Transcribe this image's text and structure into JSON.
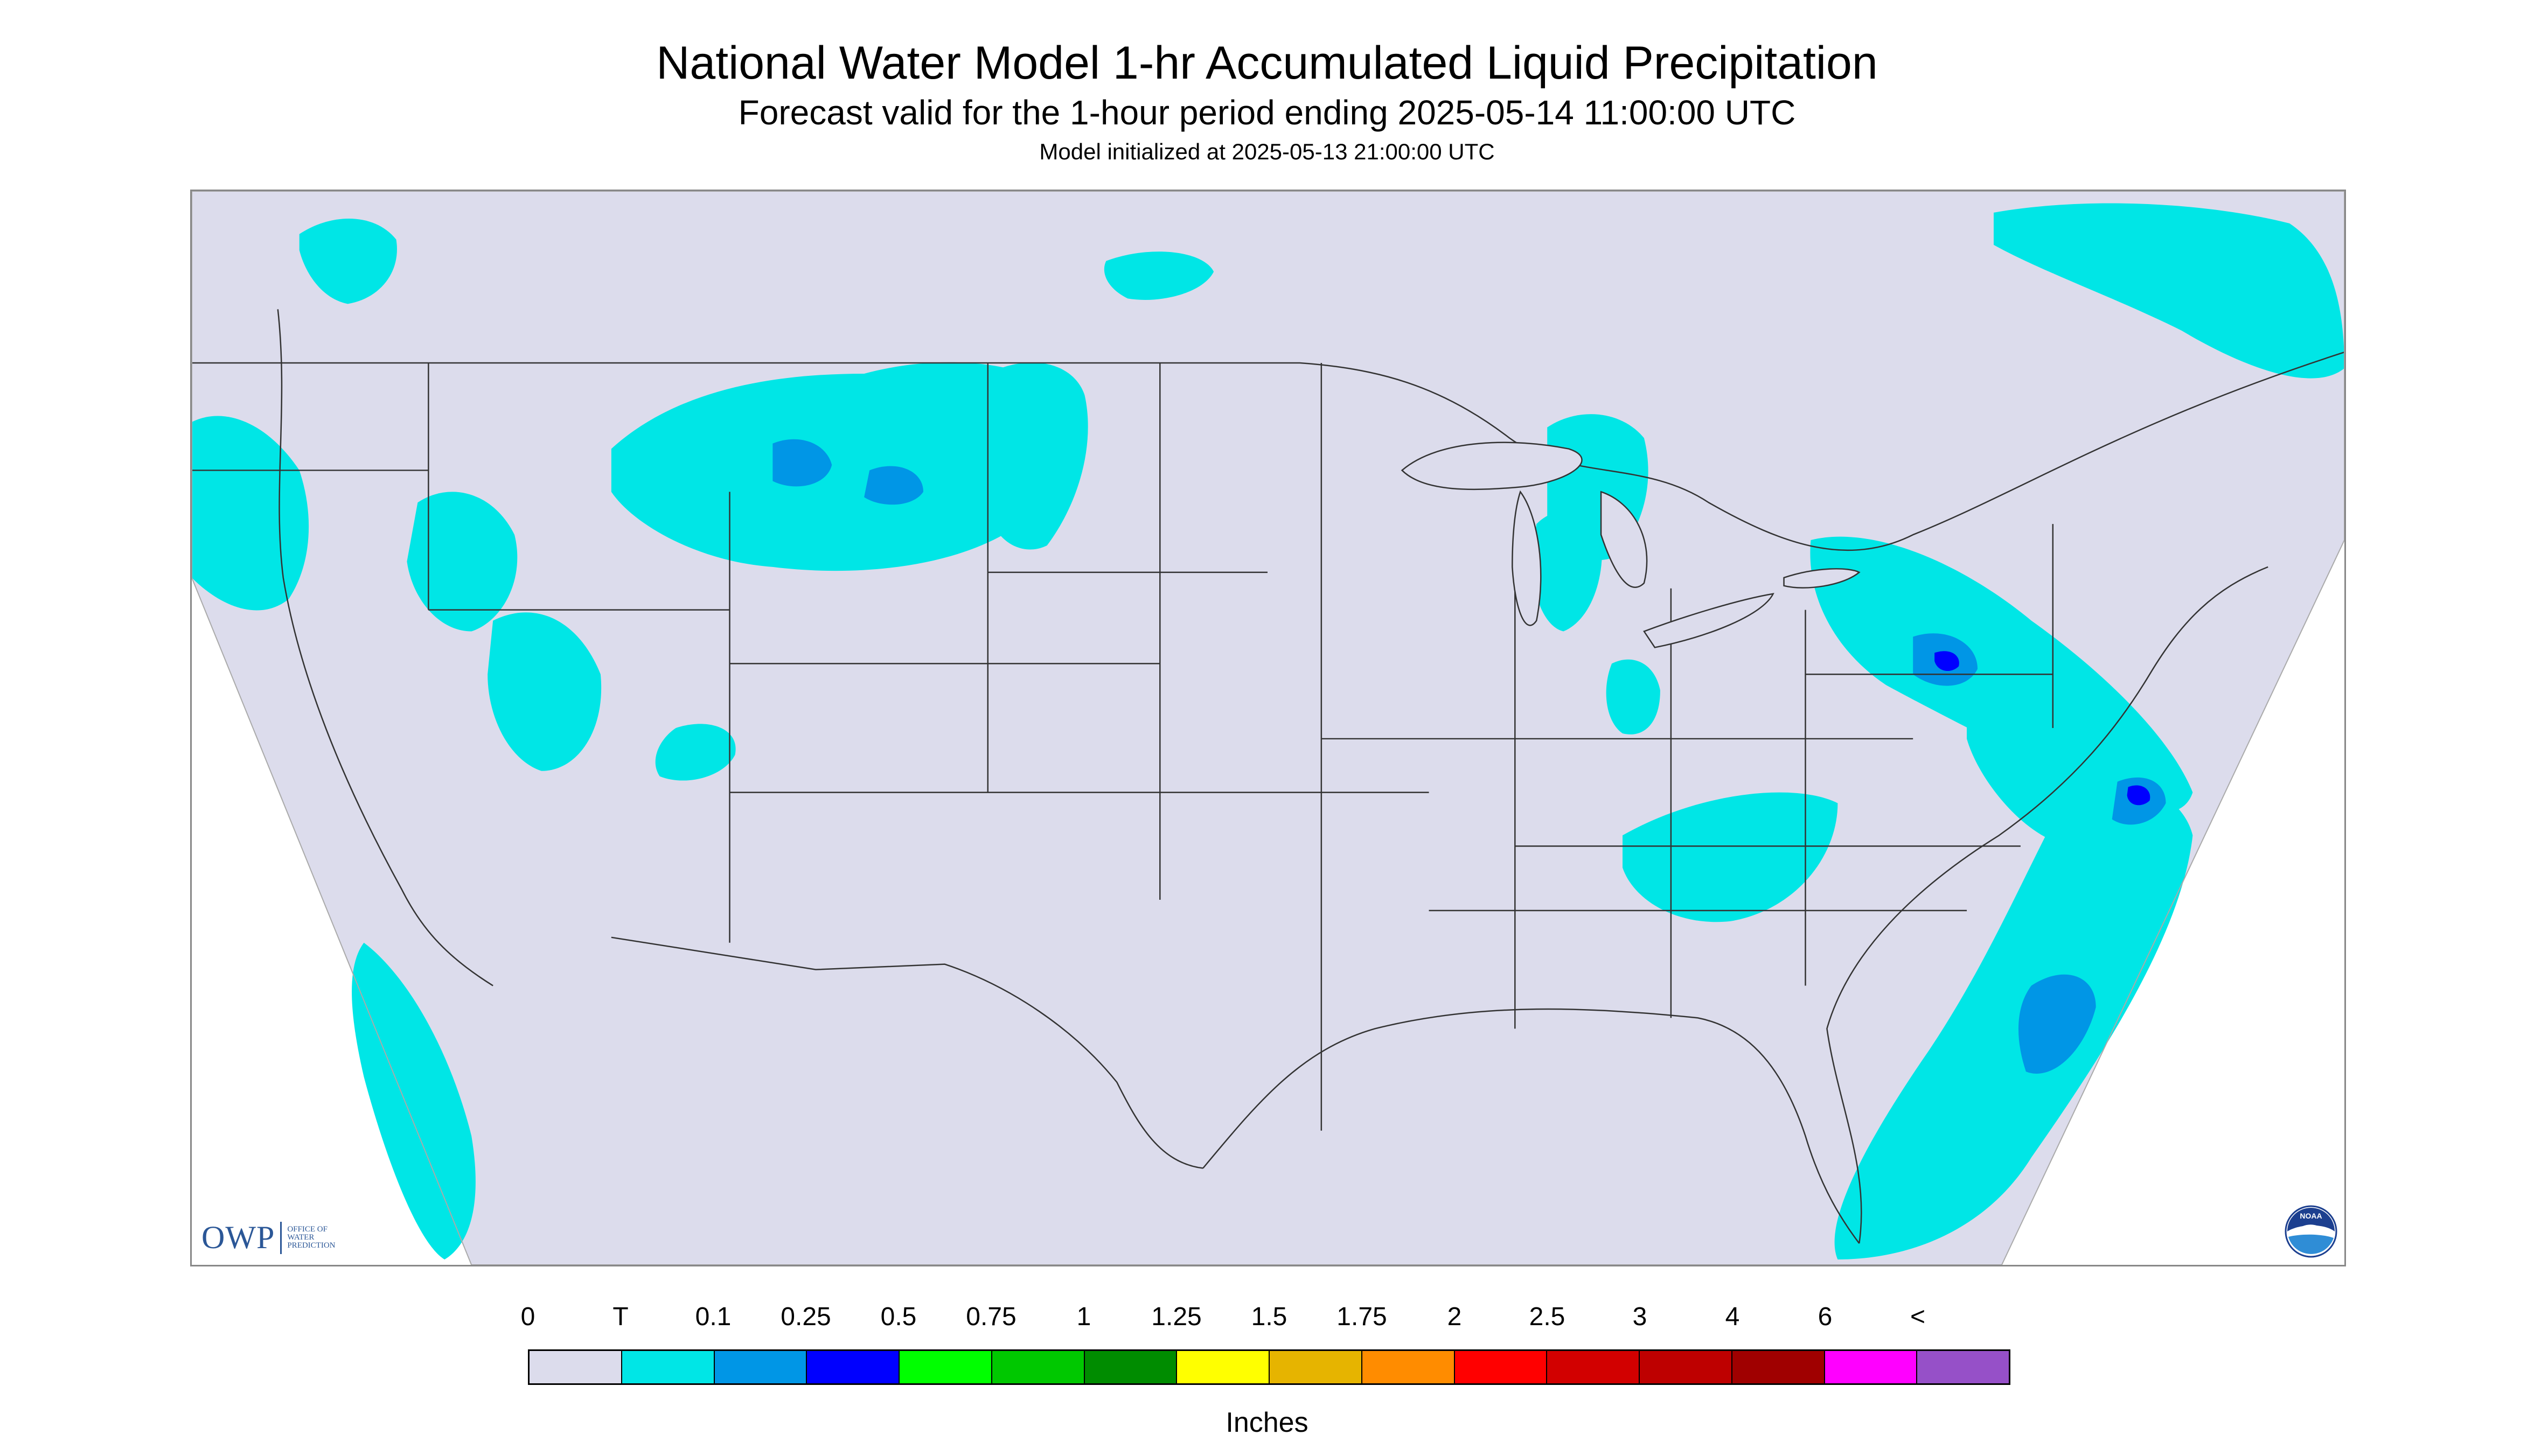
{
  "header": {
    "title": "National Water Model 1-hr Accumulated Liquid Precipitation",
    "subtitle": "Forecast valid for the 1-hour period ending 2025-05-14 11:00:00 UTC",
    "init_line": "Model initialized at 2025-05-13 21:00:00 UTC"
  },
  "map": {
    "background_color": "#dcdcec",
    "outside_domain_color": "#ffffff",
    "precip_light_color": "#00e6e6",
    "precip_moderate_color": "#0096e6",
    "precip_heavy_color": "#0000ff",
    "boundary_color": "#333333"
  },
  "logos": {
    "owp_mark": "OWP",
    "owp_text": "OFFICE OF WATER PREDICTION",
    "noaa_text": "NOAA"
  },
  "legend": {
    "labels": [
      "0",
      "T",
      "0.1",
      "0.25",
      "0.5",
      "0.75",
      "1",
      "1.25",
      "1.5",
      "1.75",
      "2",
      "2.5",
      "3",
      "4",
      "6",
      "<"
    ],
    "colors": [
      "#dcdcec",
      "#00e6e6",
      "#0096e6",
      "#0000ff",
      "#00ff00",
      "#00c800",
      "#008c00",
      "#ffff00",
      "#e6b400",
      "#ff8c00",
      "#ff0000",
      "#d20000",
      "#be0000",
      "#a00000",
      "#ff00ff",
      "#9650c8"
    ],
    "units": "Inches"
  }
}
